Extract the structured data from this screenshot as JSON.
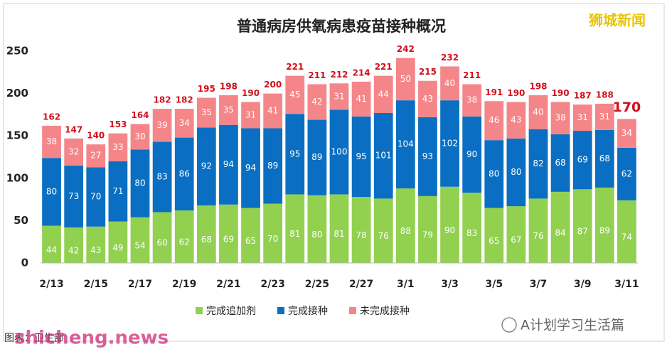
{
  "chart_data": {
    "type": "stacked_bar",
    "title": "普通病房供氧病患疫苗接种概况",
    "categories": [
      "2/13",
      null,
      "2/15",
      null,
      "2/17",
      null,
      "2/19",
      null,
      "2/21",
      null,
      "2/23",
      null,
      "2/25",
      null,
      "2/27",
      null,
      "3/1",
      null,
      "3/3",
      null,
      "3/5",
      null,
      "3/7",
      null,
      "3/9",
      null,
      "3/11"
    ],
    "series": [
      {
        "name": "完成追加剂",
        "color": "#92d050",
        "values": [
          44,
          42,
          43,
          49,
          54,
          60,
          62,
          68,
          69,
          65,
          70,
          81,
          80,
          81,
          78,
          76,
          88,
          79,
          90,
          83,
          65,
          67,
          76,
          84,
          87,
          89,
          74
        ]
      },
      {
        "name": "完成接种",
        "color": "#0a6fc2",
        "values": [
          80,
          73,
          70,
          71,
          80,
          83,
          86,
          92,
          94,
          94,
          89,
          95,
          89,
          100,
          95,
          101,
          104,
          93,
          102,
          90,
          80,
          80,
          82,
          68,
          69,
          68,
          62
        ]
      },
      {
        "name": "未完成接种",
        "color": "#f4868a",
        "values": [
          38,
          32,
          27,
          33,
          30,
          39,
          34,
          35,
          35,
          31,
          41,
          45,
          42,
          31,
          41,
          44,
          50,
          43,
          40,
          38,
          46,
          43,
          40,
          38,
          31,
          31,
          34
        ]
      }
    ],
    "totals": [
      162,
      147,
      140,
      153,
      164,
      182,
      182,
      195,
      198,
      190,
      200,
      221,
      211,
      212,
      214,
      221,
      242,
      215,
      232,
      211,
      191,
      190,
      198,
      190,
      187,
      188,
      170
    ],
    "ylim": [
      0,
      250
    ],
    "yticks": [
      0,
      50,
      100,
      150,
      200,
      250
    ],
    "grid": false,
    "legend": "bottom"
  },
  "watermark": "狮城新闻",
  "source": "图表：卫生部",
  "site": "shicheng.news",
  "account": "A计划学习生活篇"
}
